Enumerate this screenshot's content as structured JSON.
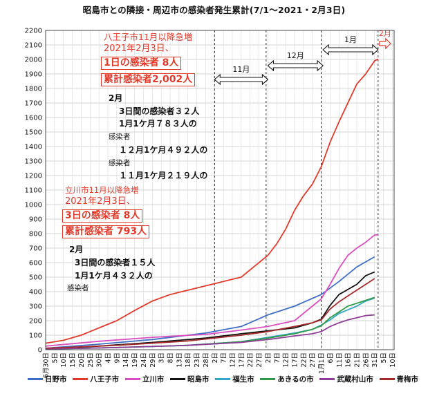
{
  "chart_data": {
    "type": "line",
    "title": "昭島市との隣接・周辺市の感染者発生累計(7/1～2021・2月3日)",
    "ylim": [
      0,
      2200
    ],
    "y_ticks": [
      0,
      100,
      200,
      300,
      400,
      500,
      600,
      700,
      800,
      900,
      1000,
      1100,
      1200,
      1300,
      1400,
      1500,
      1600,
      1700,
      1800,
      1900,
      2000,
      2100,
      2200
    ],
    "grid": true,
    "legend_position": "bottom",
    "x_tick_labels": [
      "6月30日",
      "5日",
      "10日",
      "15日",
      "20日",
      "25日",
      "30日",
      "4日",
      "9日",
      "14日",
      "19日",
      "24日",
      "29日",
      "3日",
      "8日",
      "13日",
      "18日",
      "23日",
      "28日",
      "2日",
      "7日",
      "12日",
      "17日",
      "22日",
      "27日",
      "2日",
      "7日",
      "12日",
      "17日",
      "22日",
      "27日",
      "1月1日",
      "6日",
      "11日",
      "16日",
      "21日",
      "26日",
      "31日",
      "5日",
      "10日"
    ],
    "x_days": [
      0,
      5,
      10,
      15,
      20,
      25,
      30,
      35,
      40,
      45,
      50,
      55,
      60,
      65,
      70,
      75,
      80,
      85,
      90,
      95,
      100,
      105,
      110,
      115,
      120,
      125,
      130,
      135,
      140,
      145,
      150,
      155,
      160,
      165,
      170,
      175,
      180,
      185,
      190,
      195
    ],
    "x_range": [
      0,
      196
    ],
    "month_markers": [
      {
        "label": "11月",
        "day": 124,
        "from": 95,
        "to": 125
      },
      {
        "label": "12月",
        "day": 155,
        "from": 125,
        "to": 156
      },
      {
        "label": "1月",
        "day": 187,
        "from": 156,
        "to": 187
      },
      {
        "label": "2月",
        "day": 196,
        "from": 187,
        "to": 193
      }
    ],
    "series": [
      {
        "name": "日野市",
        "color": "#3f6fc4",
        "x": [
          0,
          30,
          60,
          90,
          110,
          125,
          140,
          155,
          165,
          175,
          185
        ],
        "y": [
          10,
          38,
          70,
          115,
          160,
          240,
          300,
          380,
          470,
          570,
          640
        ]
      },
      {
        "name": "八王子市",
        "color": "#e23a2a",
        "x": [
          0,
          10,
          20,
          30,
          40,
          50,
          60,
          70,
          80,
          90,
          100,
          110,
          118,
          125,
          130,
          135,
          140,
          145,
          150,
          155,
          160,
          165,
          170,
          175,
          180,
          185,
          187
        ],
        "y": [
          45,
          65,
          100,
          150,
          200,
          270,
          335,
          380,
          410,
          440,
          470,
          500,
          580,
          650,
          730,
          830,
          960,
          1060,
          1140,
          1260,
          1430,
          1570,
          1700,
          1830,
          1900,
          1990,
          2002
        ]
      },
      {
        "name": "立川市",
        "color": "#d94fc0",
        "x": [
          0,
          30,
          60,
          90,
          110,
          125,
          140,
          155,
          160,
          165,
          170,
          175,
          180,
          185,
          187
        ],
        "y": [
          25,
          58,
          85,
          105,
          135,
          160,
          200,
          350,
          450,
          560,
          650,
          700,
          740,
          790,
          793
        ]
      },
      {
        "name": "昭島市",
        "color": "#111111",
        "x": [
          0,
          30,
          60,
          90,
          110,
          125,
          140,
          150,
          155,
          160,
          165,
          170,
          175,
          180,
          185
        ],
        "y": [
          5,
          25,
          50,
          80,
          110,
          130,
          150,
          185,
          210,
          305,
          380,
          415,
          450,
          510,
          535
        ]
      },
      {
        "name": "福生市",
        "color": "#33a6c8",
        "x": [
          0,
          40,
          80,
          110,
          125,
          140,
          150,
          155,
          160,
          165,
          170,
          175,
          180,
          185
        ],
        "y": [
          5,
          15,
          30,
          55,
          85,
          115,
          140,
          170,
          205,
          250,
          275,
          300,
          335,
          355
        ]
      },
      {
        "name": "あきるの市",
        "color": "#2f9a47",
        "x": [
          0,
          40,
          80,
          110,
          125,
          140,
          150,
          155,
          160,
          165,
          170,
          175,
          180,
          185
        ],
        "y": [
          5,
          15,
          30,
          55,
          80,
          110,
          140,
          165,
          220,
          260,
          300,
          320,
          340,
          360
        ]
      },
      {
        "name": "武蔵村山市",
        "color": "#8e3d96",
        "x": [
          0,
          40,
          80,
          110,
          125,
          140,
          150,
          155,
          160,
          165,
          170,
          175,
          180,
          185
        ],
        "y": [
          5,
          15,
          30,
          50,
          70,
          95,
          110,
          125,
          160,
          185,
          205,
          220,
          235,
          240
        ]
      },
      {
        "name": "青梅市",
        "color": "#a52a2a",
        "x": [
          0,
          40,
          80,
          110,
          125,
          140,
          150,
          155,
          160,
          165,
          170,
          175,
          180,
          185
        ],
        "y": [
          10,
          30,
          60,
          100,
          125,
          160,
          185,
          205,
          280,
          330,
          370,
          410,
          450,
          490
        ]
      }
    ]
  },
  "annotations": {
    "hachioji": {
      "heading": "八王子市11月以降急増",
      "date": "2021年2月3日、",
      "daily": "1日の感染者 8人",
      "total": "累計感染者2,002人",
      "lines": [
        "2月",
        "3日間の感染者３２人",
        "1月1ケ月７８３人の",
        "感染者",
        "１２月1ケ月４９２人の",
        "感染者",
        "１１月1ケ月２１９人の"
      ]
    },
    "tachikawa": {
      "heading": "立川市11月以降急増",
      "date": "2021年2月3日、",
      "daily": "3日の感染者 8人",
      "total": "累計感染者 793人",
      "lines": [
        "2月",
        "3日間の感染者１５人",
        "1月1ケ月４３２人の",
        "感染者"
      ]
    }
  }
}
